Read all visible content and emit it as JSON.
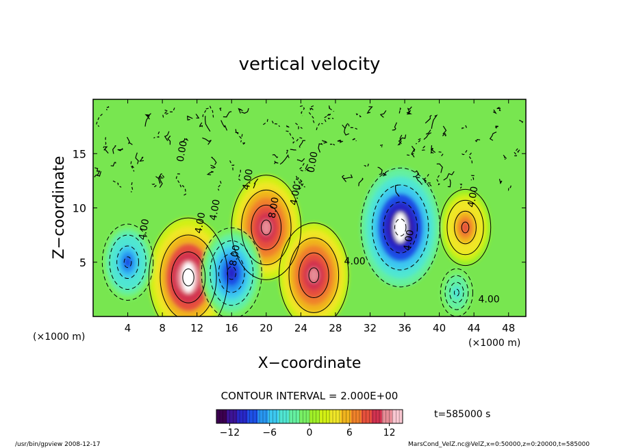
{
  "chart_data": {
    "type": "heatmap",
    "title": "vertical velocity",
    "xlabel": "X−coordinate",
    "ylabel": "Z−coordinate",
    "x_unit_left": "(×1000 m)",
    "x_unit_right": "(×1000 m)",
    "xlim": [
      0,
      50
    ],
    "ylim": [
      0,
      20
    ],
    "x_ticks": [
      4,
      8,
      12,
      16,
      20,
      24,
      28,
      32,
      36,
      40,
      44,
      48
    ],
    "y_ticks": [
      5,
      10,
      15
    ],
    "contour_interval_text": "CONTOUR INTERVAL = 2.000E+00",
    "time_text": "t=585000 s",
    "colorbar": {
      "range": [
        -14,
        14
      ],
      "ticks": [
        -12,
        -6,
        0,
        6,
        12
      ],
      "colors": [
        "#3c0050",
        "#3c1496",
        "#2828c8",
        "#1e50e6",
        "#2896f0",
        "#3cc8f0",
        "#50e6d2",
        "#64f0a0",
        "#78f064",
        "#a0f028",
        "#d2f014",
        "#f0e628",
        "#f0b41e",
        "#f0822a",
        "#e6503c",
        "#d23250",
        "#e68c96",
        "#fac8d2"
      ]
    },
    "features": [
      {
        "kind": "updraft",
        "x": 11,
        "z": 3.6,
        "peak": 14
      },
      {
        "kind": "updraft",
        "x": 20,
        "z": 8.2,
        "peak": 12
      },
      {
        "kind": "updraft",
        "x": 25.5,
        "z": 3.8,
        "peak": 12
      },
      {
        "kind": "updraft",
        "x": 43,
        "z": 8.2,
        "peak": 8
      },
      {
        "kind": "downdraft",
        "x": 35.5,
        "z": 8.2,
        "peak": -14
      },
      {
        "kind": "downdraft",
        "x": 16,
        "z": 4,
        "peak": -10
      },
      {
        "kind": "downdraft",
        "x": 4,
        "z": 5,
        "peak": -8
      },
      {
        "kind": "downdraft",
        "x": 42,
        "z": 2.2,
        "peak": -4
      }
    ],
    "contour_labels": [
      "4.00",
      "4.00",
      "4.00",
      "8.00",
      "4.00",
      "0.00",
      "4.00",
      "0.00",
      "8.00",
      "4.00",
      "4.00",
      "4.00",
      "4.00"
    ]
  },
  "footer": {
    "left": "/usr/bin/gpview   2008-12-17",
    "right": "MarsCond_VelZ.nc@VelZ,x=0:50000,z=0:20000,t=585000"
  }
}
